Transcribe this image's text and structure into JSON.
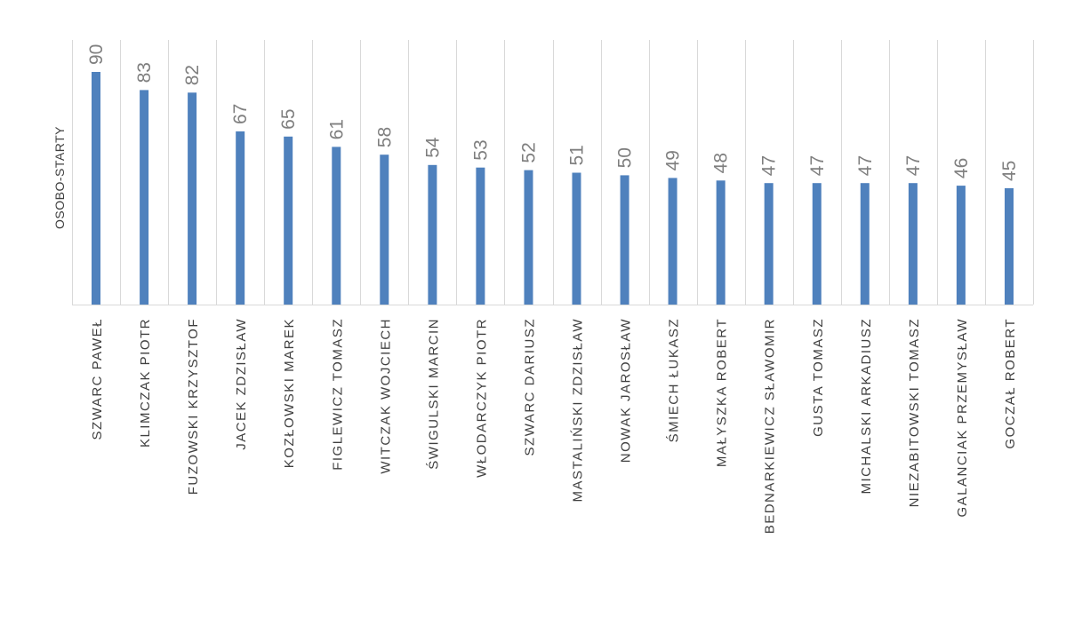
{
  "chart_data": {
    "type": "bar",
    "title": "",
    "xlabel": "",
    "ylabel": "OSOBO-STARTY",
    "ylim": [
      0,
      90
    ],
    "grid": "vertical separators only",
    "legend": "none",
    "bar_color": "#4f81bd",
    "categories": [
      "SZWARC PAWEŁ",
      "KLIMCZAK PIOTR",
      "FUZOWSKI KRZYSZTOF",
      "JACEK ZDZISŁAW",
      "KOZŁOWSKI MAREK",
      "FIGLEWICZ TOMASZ",
      "WITCZAK WOJCIECH",
      "ŚWIGULSKI MARCIN",
      "WŁODARCZYK PIOTR",
      "SZWARC DARIUSZ",
      "MASTALIŃSKI ZDZISŁAW",
      "NOWAK JAROSŁAW",
      "ŚMIECH ŁUKASZ",
      "MAŁYSZKA ROBERT",
      "BEDNARKIEWICZ SŁAWOMIR",
      "GUSTA TOMASZ",
      "MICHALSKI ARKADIUSZ",
      "NIEZABITOWSKI TOMASZ",
      "GALANCIAK PRZEMYSŁAW",
      "GOCZAŁ ROBERT"
    ],
    "values": [
      90,
      83,
      82,
      67,
      65,
      61,
      58,
      54,
      53,
      52,
      51,
      50,
      49,
      48,
      47,
      47,
      47,
      47,
      46,
      45
    ]
  }
}
